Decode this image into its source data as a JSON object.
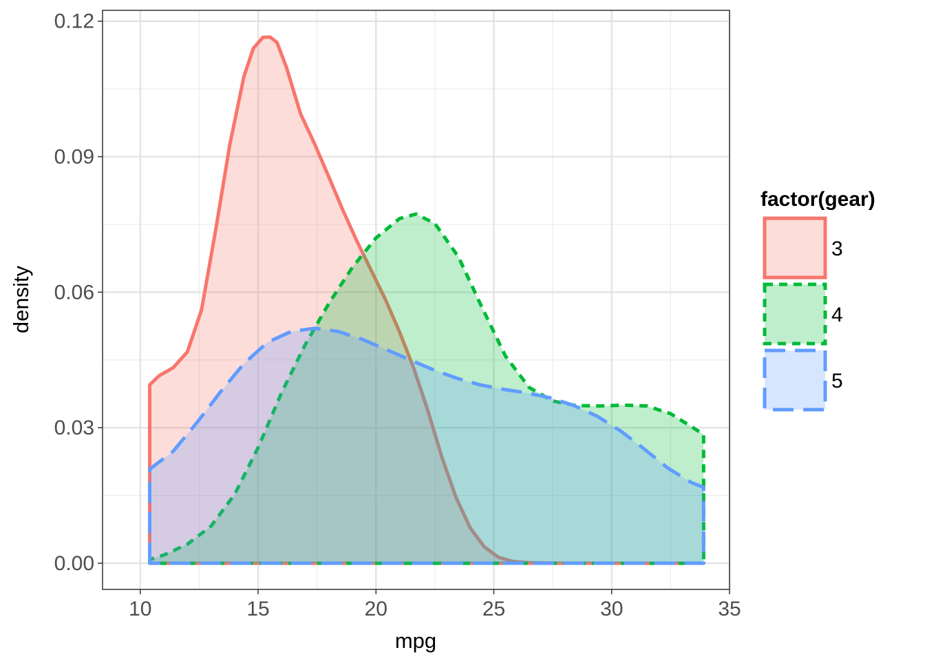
{
  "chart_data": {
    "type": "area",
    "xlabel": "mpg",
    "ylabel": "density",
    "xlim": [
      8.4,
      35.0
    ],
    "ylim": [
      -0.0058,
      0.1224
    ],
    "x_ticks": [
      10,
      15,
      20,
      25,
      30,
      35
    ],
    "x_tick_labels": [
      "10",
      "15",
      "20",
      "25",
      "30",
      "35"
    ],
    "y_ticks": [
      0.0,
      0.03,
      0.06,
      0.09,
      0.12
    ],
    "y_tick_labels": [
      "0.00",
      "0.03",
      "0.06",
      "0.09",
      "0.12"
    ],
    "grid": true,
    "legend": {
      "title": "factor(gear)",
      "position": "right"
    },
    "series": [
      {
        "name": "3",
        "color": "#F8766D",
        "fill": "#FADCDA",
        "linetype": "solid",
        "x": [
          10.4,
          10.8,
          11.4,
          12.0,
          12.6,
          13.2,
          13.8,
          14.4,
          14.8,
          15.2,
          15.5,
          15.8,
          16.2,
          16.8,
          17.4,
          18.0,
          18.6,
          19.2,
          19.8,
          20.4,
          21.0,
          21.6,
          22.2,
          22.8,
          23.4,
          24.0,
          24.6,
          25.2,
          25.8,
          26.5,
          28.0,
          30.0,
          32.0,
          33.9
        ],
        "y": [
          0.0395,
          0.0415,
          0.0433,
          0.0468,
          0.0561,
          0.0738,
          0.0927,
          0.1078,
          0.114,
          0.1164,
          0.1165,
          0.1153,
          0.1098,
          0.0995,
          0.0928,
          0.0855,
          0.0781,
          0.0712,
          0.0648,
          0.0584,
          0.0512,
          0.0432,
          0.0338,
          0.0234,
          0.0145,
          0.0078,
          0.0036,
          0.0013,
          0.0004,
          0.0001,
          0.0,
          0.0,
          0.0,
          0.0
        ]
      },
      {
        "name": "4",
        "color": "#00BA38",
        "fill": "#D4EFD5",
        "linetype": "dashed",
        "x": [
          10.4,
          11.0,
          12.0,
          13.0,
          14.0,
          15.0,
          16.0,
          17.0,
          18.0,
          19.0,
          20.0,
          21.0,
          21.7,
          22.5,
          23.5,
          24.5,
          25.5,
          26.5,
          27.5,
          28.5,
          29.5,
          30.5,
          31.5,
          32.5,
          33.3,
          33.9
        ],
        "y": [
          0.0008,
          0.0018,
          0.0042,
          0.0082,
          0.0152,
          0.0256,
          0.0378,
          0.0484,
          0.0575,
          0.0655,
          0.072,
          0.0763,
          0.0773,
          0.0752,
          0.0678,
          0.0566,
          0.0458,
          0.0389,
          0.0359,
          0.0349,
          0.0348,
          0.035,
          0.0348,
          0.0331,
          0.0305,
          0.0285
        ]
      },
      {
        "name": "5",
        "color": "#619CFF",
        "fill": "#DBE6FF",
        "linetype": "longdash",
        "x": [
          10.4,
          11.4,
          12.4,
          13.4,
          14.4,
          15.4,
          16.4,
          17.4,
          18.4,
          19.4,
          20.4,
          21.4,
          22.4,
          23.4,
          24.4,
          25.4,
          26.4,
          27.4,
          28.4,
          29.4,
          30.4,
          31.4,
          32.4,
          33.4,
          33.9
        ],
        "y": [
          0.0208,
          0.0248,
          0.0311,
          0.0379,
          0.0442,
          0.0489,
          0.0513,
          0.052,
          0.0513,
          0.0496,
          0.0474,
          0.0451,
          0.0429,
          0.041,
          0.0395,
          0.0385,
          0.0377,
          0.0366,
          0.0349,
          0.0325,
          0.0292,
          0.0252,
          0.021,
          0.0178,
          0.0168
        ]
      }
    ]
  }
}
